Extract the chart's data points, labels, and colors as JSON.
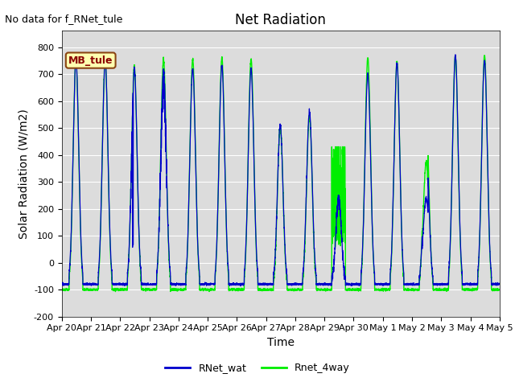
{
  "title": "Net Radiation",
  "xlabel": "Time",
  "ylabel": "Solar Radiation (W/m2)",
  "ylim": [
    -200,
    860
  ],
  "yticks": [
    -200,
    -100,
    0,
    100,
    200,
    300,
    400,
    500,
    600,
    700,
    800
  ],
  "no_data_text": "No data for f_RNet_tule",
  "annotation_text": "MB_tule",
  "line1_label": "RNet_wat",
  "line2_label": "Rnet_4way",
  "line1_color": "#0000CC",
  "line2_color": "#00EE00",
  "plot_bg_color": "#DCDCDC",
  "fig_bg_color": "#FFFFFF",
  "grid_color": "#FFFFFF",
  "x_tick_labels": [
    "Apr 20",
    "Apr 21",
    "Apr 22",
    "Apr 23",
    "Apr 24",
    "Apr 25",
    "Apr 26",
    "Apr 27",
    "Apr 28",
    "Apr 29",
    "Apr 30",
    "May 1",
    "May 2",
    "May 3",
    "May 4",
    "May 5"
  ],
  "n_days": 15,
  "title_fontsize": 12,
  "label_fontsize": 10,
  "tick_fontsize": 8,
  "annot_fontsize": 9,
  "nodata_fontsize": 9
}
